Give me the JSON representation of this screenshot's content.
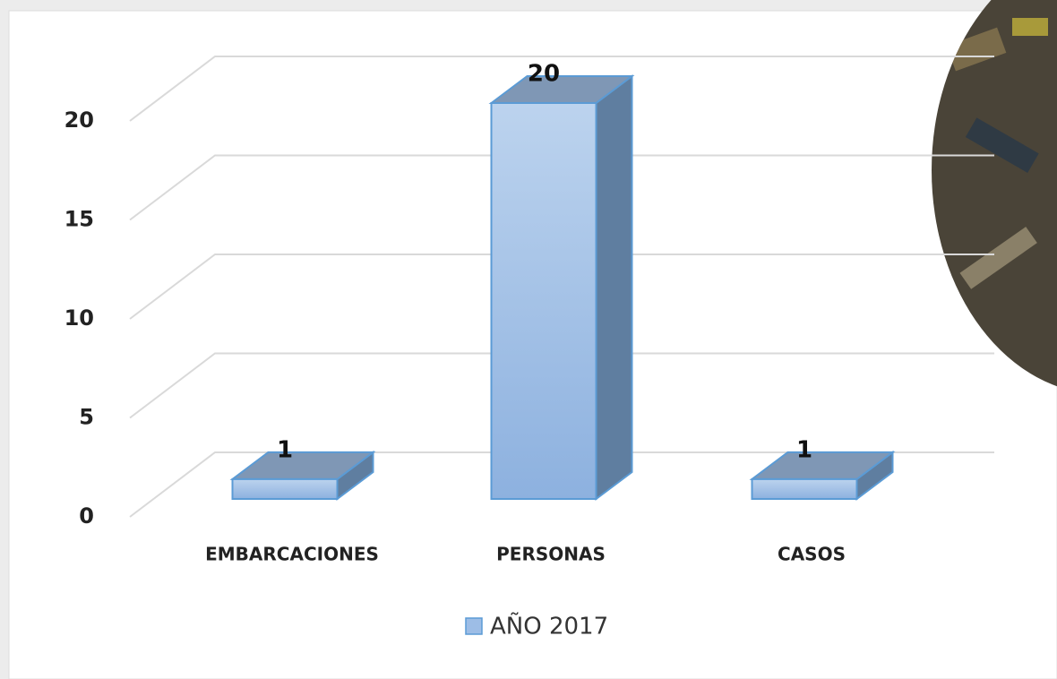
{
  "chart_data": {
    "type": "bar3d",
    "categories": [
      "EMBARCACIONES",
      "PERSONAS",
      "CASOS"
    ],
    "series": [
      {
        "name": "AÑO 2017",
        "color": "#9dbde6",
        "values": [
          1,
          20,
          1
        ]
      }
    ],
    "ylim": [
      0,
      20
    ],
    "yticks": [
      0,
      5,
      10,
      15,
      20
    ],
    "grid": true,
    "legend": "bottom"
  }
}
